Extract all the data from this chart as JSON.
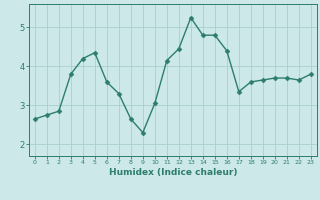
{
  "x": [
    0,
    1,
    2,
    3,
    4,
    5,
    6,
    7,
    8,
    9,
    10,
    11,
    12,
    13,
    14,
    15,
    16,
    17,
    18,
    19,
    20,
    21,
    22,
    23
  ],
  "y": [
    2.65,
    2.75,
    2.85,
    3.8,
    4.2,
    4.35,
    3.6,
    3.3,
    2.65,
    2.3,
    3.05,
    4.15,
    4.45,
    5.25,
    4.8,
    4.8,
    4.4,
    3.35,
    3.6,
    3.65,
    3.7,
    3.7,
    3.65,
    3.8
  ],
  "xlabel": "Humidex (Indice chaleur)",
  "xlim": [
    -0.5,
    23.5
  ],
  "ylim": [
    1.7,
    5.6
  ],
  "yticks": [
    2,
    3,
    4,
    5
  ],
  "xticks": [
    0,
    1,
    2,
    3,
    4,
    5,
    6,
    7,
    8,
    9,
    10,
    11,
    12,
    13,
    14,
    15,
    16,
    17,
    18,
    19,
    20,
    21,
    22,
    23
  ],
  "line_color": "#2d7d6f",
  "marker_color": "#2d7d6f",
  "bg_color": "#cce8e8",
  "grid_color": "#aacece",
  "axis_color": "#2d7d6f",
  "tick_color": "#2d7d6f",
  "xlabel_color": "#2d7d6f",
  "marker_size": 2.5,
  "line_width": 1.0
}
